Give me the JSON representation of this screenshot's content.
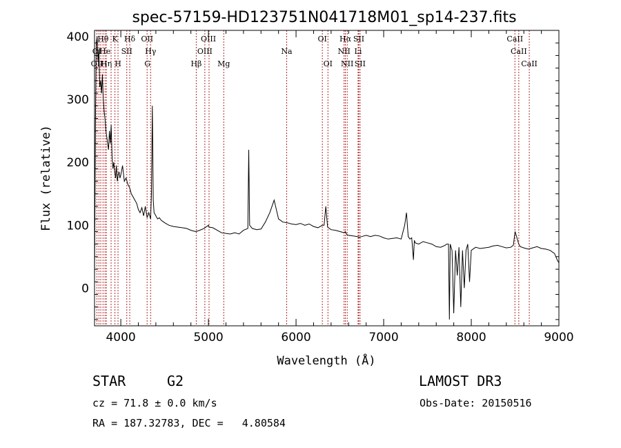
{
  "chart_data": {
    "type": "line",
    "title": "spec-57159-HD123751N041718M01_sp14-237.fits",
    "xlabel": "Wavelength (Å)",
    "ylabel": "Flux (relative)",
    "xlim": [
      3700,
      9000
    ],
    "ylim": [
      -60,
      410
    ],
    "xticks": [
      4000,
      5000,
      6000,
      7000,
      8000,
      9000
    ],
    "yticks": [
      0,
      100,
      200,
      300,
      400
    ],
    "grid": false,
    "series": [
      {
        "x": [
          3700,
          3710,
          3720,
          3730,
          3740,
          3750,
          3760,
          3770,
          3780,
          3790,
          3800,
          3810,
          3820,
          3830,
          3840,
          3850,
          3860,
          3870,
          3880,
          3890,
          3900,
          3910,
          3920,
          3930,
          3940,
          3950,
          3960,
          3970,
          3980,
          3990,
          4000,
          4020,
          4040,
          4060,
          4080,
          4100,
          4120,
          4140,
          4160,
          4180,
          4200,
          4220,
          4240,
          4260,
          4280,
          4300,
          4320,
          4340,
          4350,
          4360,
          4370,
          4380,
          4400,
          4420,
          4440,
          4460,
          4480,
          4500,
          4550,
          4600,
          4650,
          4700,
          4750,
          4800,
          4850,
          4861,
          4880,
          4900,
          4950,
          5000,
          5007,
          5050,
          5100,
          5150,
          5200,
          5250,
          5300,
          5350,
          5400,
          5450,
          5460,
          5470,
          5500,
          5550,
          5600,
          5650,
          5700,
          5750,
          5800,
          5850,
          5900,
          5950,
          6000,
          6050,
          6100,
          6150,
          6200,
          6250,
          6300,
          6320,
          6340,
          6360,
          6400,
          6450,
          6500,
          6550,
          6563,
          6580,
          6600,
          6650,
          6700,
          6720,
          6750,
          6800,
          6850,
          6900,
          6950,
          7000,
          7050,
          7100,
          7150,
          7200,
          7240,
          7260,
          7280,
          7300,
          7320,
          7340,
          7350,
          7360,
          7400,
          7450,
          7500,
          7550,
          7600,
          7650,
          7700,
          7720,
          7740,
          7750,
          7760,
          7780,
          7800,
          7820,
          7840,
          7860,
          7880,
          7900,
          7920,
          7940,
          7960,
          7980,
          8000,
          8050,
          8100,
          8150,
          8200,
          8250,
          8300,
          8350,
          8400,
          8450,
          8480,
          8500,
          8542,
          8560,
          8600,
          8650,
          8700,
          8750,
          8800,
          8850,
          8900,
          8950,
          8980,
          9000
        ],
        "y": [
          10,
          260,
          390,
          400,
          360,
          380,
          320,
          330,
          310,
          340,
          300,
          280,
          270,
          250,
          240,
          230,
          220,
          250,
          230,
          260,
          210,
          190,
          200,
          185,
          175,
          195,
          170,
          180,
          185,
          175,
          180,
          195,
          170,
          175,
          165,
          160,
          150,
          145,
          140,
          135,
          125,
          120,
          128,
          115,
          130,
          112,
          120,
          110,
          150,
          290,
          140,
          120,
          115,
          110,
          112,
          108,
          106,
          104,
          100,
          98,
          97,
          96,
          95,
          92,
          90,
          90,
          91,
          92,
          95,
          100,
          97,
          96,
          92,
          88,
          87,
          86,
          88,
          86,
          92,
          95,
          220,
          100,
          95,
          93,
          94,
          105,
          120,
          140,
          110,
          105,
          104,
          102,
          101,
          103,
          100,
          102,
          98,
          96,
          100,
          100,
          130,
          97,
          93,
          92,
          90,
          88,
          90,
          85,
          84,
          83,
          82,
          81,
          82,
          84,
          82,
          84,
          83,
          80,
          78,
          79,
          80,
          78,
          100,
          120,
          82,
          78,
          80,
          45,
          76,
          72,
          70,
          74,
          72,
          70,
          66,
          65,
          68,
          70,
          70,
          -50,
          70,
          60,
          -40,
          60,
          20,
          65,
          -30,
          60,
          0,
          60,
          70,
          10,
          60,
          65,
          63,
          64,
          65,
          67,
          68,
          66,
          64,
          65,
          68,
          90,
          70,
          66,
          64,
          62,
          64,
          66,
          63,
          62,
          60,
          55,
          45,
          40
        ]
      }
    ],
    "lines": [
      {
        "name": "Hθ",
        "x": 3797,
        "row": 1
      },
      {
        "name": "K",
        "x": 3933,
        "row": 1
      },
      {
        "name": "Hδ",
        "x": 4102,
        "row": 1
      },
      {
        "name": "OII",
        "x": 4300,
        "row": 1
      },
      {
        "name": "OIII",
        "x": 5000,
        "row": 1
      },
      {
        "name": "OI",
        "x": 6300,
        "row": 1
      },
      {
        "name": "Hα",
        "x": 6563,
        "row": 1
      },
      {
        "name": "SII",
        "x": 6716,
        "row": 1
      },
      {
        "name": "CaII",
        "x": 8498,
        "row": 1
      },
      {
        "name": "OI",
        "x": 3727,
        "row": 2
      },
      {
        "name": "He",
        "x": 3820,
        "row": 2
      },
      {
        "name": "SII",
        "x": 4068,
        "row": 2
      },
      {
        "name": "Hγ",
        "x": 4340,
        "row": 2
      },
      {
        "name": "OIII",
        "x": 4959,
        "row": 2
      },
      {
        "name": "Na",
        "x": 5893,
        "row": 2
      },
      {
        "name": "NII",
        "x": 6548,
        "row": 2
      },
      {
        "name": "Li",
        "x": 6708,
        "row": 2
      },
      {
        "name": "CaII",
        "x": 8542,
        "row": 2
      },
      {
        "name": "OII",
        "x": 3727,
        "row": 3
      },
      {
        "name": "Hη",
        "x": 3835,
        "row": 3
      },
      {
        "name": "H",
        "x": 3968,
        "row": 3
      },
      {
        "name": "G",
        "x": 4304,
        "row": 3
      },
      {
        "name": "Hβ",
        "x": 4861,
        "row": 3
      },
      {
        "name": "Mg",
        "x": 5175,
        "row": 3
      },
      {
        "name": "OI",
        "x": 6364,
        "row": 3
      },
      {
        "name": "NII",
        "x": 6584,
        "row": 3
      },
      {
        "name": "SII",
        "x": 6731,
        "row": 3
      },
      {
        "name": "CaII",
        "x": 8662,
        "row": 3
      }
    ],
    "line_positions": [
      3727,
      3750,
      3771,
      3797,
      3820,
      3835,
      3889,
      3933,
      3968,
      4068,
      4102,
      4300,
      4340,
      4861,
      4959,
      5007,
      5175,
      5893,
      6300,
      6364,
      6548,
      6563,
      6584,
      6708,
      6716,
      6731,
      8498,
      8542,
      8662
    ],
    "line_color": "#b22222"
  },
  "info": {
    "object_class": "STAR",
    "subclass": "G2",
    "survey": "LAMOST DR3",
    "redshift_line": "cz = 71.8 ± 0.0 km/s",
    "obs_date": "Obs-Date: 20150516",
    "coords": "RA = 187.32783, DEC =   4.80584"
  }
}
